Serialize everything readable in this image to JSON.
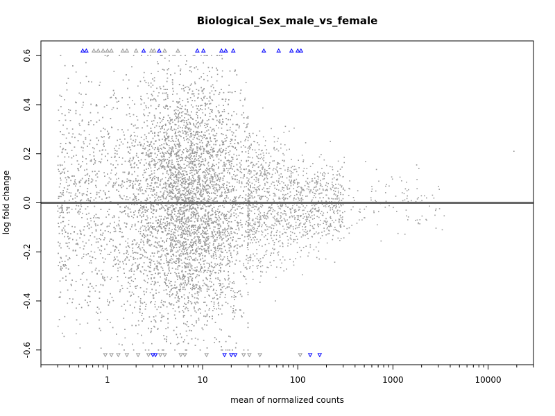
{
  "chart_data": {
    "type": "scatter",
    "title": "Biological_Sex_male_vs_female",
    "xlabel": "mean of normalized counts",
    "ylabel": "log fold change",
    "x_scale": "log10",
    "xlim": [
      0.2,
      30000
    ],
    "ylim": [
      -0.66,
      0.66
    ],
    "x_ticks": [
      {
        "value": 1,
        "label": "1"
      },
      {
        "value": 10,
        "label": "10"
      },
      {
        "value": 100,
        "label": "100"
      },
      {
        "value": 1000,
        "label": "1000"
      },
      {
        "value": 10000,
        "label": "10000"
      }
    ],
    "y_ticks": [
      {
        "value": -0.6,
        "label": "-0.6"
      },
      {
        "value": -0.4,
        "label": "-0.4"
      },
      {
        "value": -0.2,
        "label": "-0.2"
      },
      {
        "value": 0.0,
        "label": "0.0"
      },
      {
        "value": 0.2,
        "label": "0.2"
      },
      {
        "value": 0.4,
        "label": "0.4"
      },
      {
        "value": 0.6,
        "label": "0.6"
      }
    ],
    "reference_line": {
      "y": 0,
      "color": "#666666"
    },
    "grid": false,
    "legend": "none",
    "colors": {
      "point": "#999999",
      "significant": "#0000ff",
      "axis": "#000000"
    },
    "point_summary": [
      {
        "x_range": [
          0.3,
          30
        ],
        "y_range": [
          -0.6,
          0.6
        ],
        "count": 9000
      },
      {
        "x_range": [
          30,
          300
        ],
        "y_range": [
          -0.35,
          0.35
        ],
        "count": 1200
      },
      {
        "x_range": [
          300,
          3500
        ],
        "y_range": [
          -0.2,
          0.2
        ],
        "count": 120
      }
    ],
    "highlight_points": [
      {
        "x": 18700,
        "y": 0.21
      },
      {
        "x": 3300,
        "y": -0.11
      },
      {
        "x": 1800,
        "y": -0.07
      }
    ],
    "clipped_top": [
      {
        "x": 0.55,
        "sig": true
      },
      {
        "x": 0.6,
        "sig": true
      },
      {
        "x": 0.72,
        "sig": false
      },
      {
        "x": 0.8,
        "sig": false
      },
      {
        "x": 0.9,
        "sig": false
      },
      {
        "x": 1.0,
        "sig": false
      },
      {
        "x": 1.1,
        "sig": false
      },
      {
        "x": 1.45,
        "sig": false
      },
      {
        "x": 1.6,
        "sig": false
      },
      {
        "x": 2.0,
        "sig": false
      },
      {
        "x": 2.4,
        "sig": true
      },
      {
        "x": 2.9,
        "sig": false
      },
      {
        "x": 3.1,
        "sig": false
      },
      {
        "x": 3.5,
        "sig": true
      },
      {
        "x": 4.0,
        "sig": false
      },
      {
        "x": 5.5,
        "sig": false
      },
      {
        "x": 8.8,
        "sig": true
      },
      {
        "x": 10.2,
        "sig": true
      },
      {
        "x": 15.8,
        "sig": true
      },
      {
        "x": 17.5,
        "sig": true
      },
      {
        "x": 21.0,
        "sig": true
      },
      {
        "x": 44.0,
        "sig": true
      },
      {
        "x": 63.0,
        "sig": true
      },
      {
        "x": 86.0,
        "sig": true
      },
      {
        "x": 100.0,
        "sig": true
      },
      {
        "x": 108.0,
        "sig": true
      }
    ],
    "clipped_bottom": [
      {
        "x": 0.95,
        "sig": false
      },
      {
        "x": 1.1,
        "sig": false
      },
      {
        "x": 1.3,
        "sig": false
      },
      {
        "x": 1.6,
        "sig": false
      },
      {
        "x": 2.1,
        "sig": false
      },
      {
        "x": 2.7,
        "sig": false
      },
      {
        "x": 3.0,
        "sig": true
      },
      {
        "x": 3.2,
        "sig": true
      },
      {
        "x": 3.6,
        "sig": false
      },
      {
        "x": 4.0,
        "sig": false
      },
      {
        "x": 5.9,
        "sig": false
      },
      {
        "x": 6.5,
        "sig": false
      },
      {
        "x": 11.0,
        "sig": false
      },
      {
        "x": 17.0,
        "sig": true
      },
      {
        "x": 20.0,
        "sig": true
      },
      {
        "x": 22.0,
        "sig": true
      },
      {
        "x": 27.0,
        "sig": false
      },
      {
        "x": 31.0,
        "sig": false
      },
      {
        "x": 40.0,
        "sig": false
      },
      {
        "x": 106.0,
        "sig": false
      },
      {
        "x": 135.0,
        "sig": true
      },
      {
        "x": 170.0,
        "sig": true
      }
    ]
  }
}
